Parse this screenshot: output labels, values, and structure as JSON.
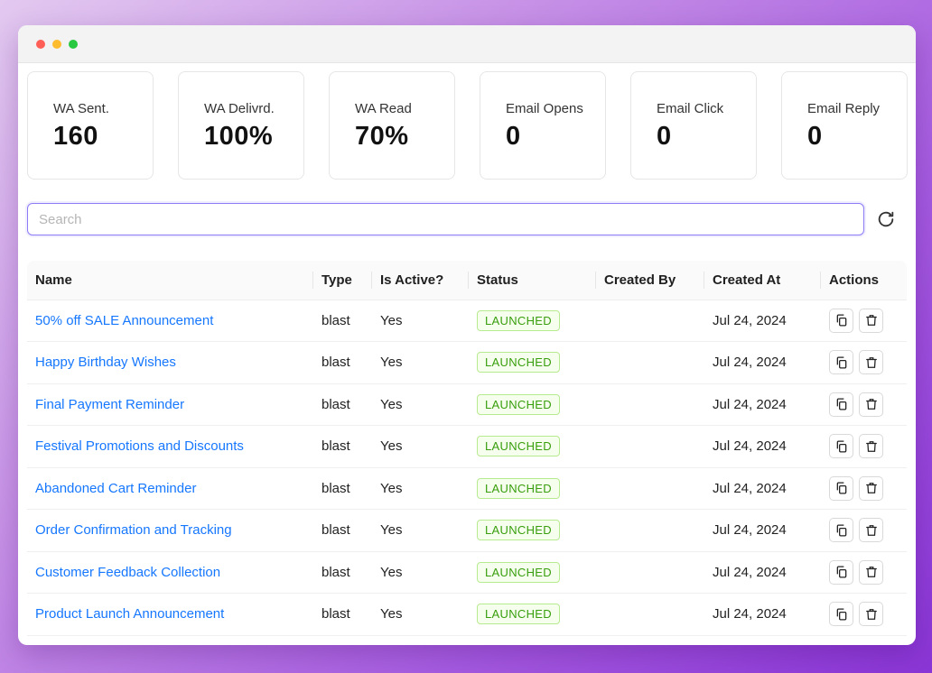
{
  "stats": [
    {
      "label": "WA Sent.",
      "value": "160"
    },
    {
      "label": "WA Delivrd.",
      "value": "100%"
    },
    {
      "label": "WA Read",
      "value": "70%"
    },
    {
      "label": "Email Opens",
      "value": "0"
    },
    {
      "label": "Email Click",
      "value": "0"
    },
    {
      "label": "Email Reply",
      "value": "0"
    }
  ],
  "search": {
    "placeholder": "Search",
    "value": ""
  },
  "icons": {
    "refresh": "refresh-icon",
    "copy": "copy-icon",
    "delete": "trash-icon"
  },
  "colors": {
    "accent": "#8b7cf6",
    "link": "#1677ff",
    "launched_text": "#389e0d",
    "launched_bg": "#f6ffed",
    "launched_border": "#b7eb8f"
  },
  "table": {
    "headers": [
      "Name",
      "Type",
      "Is Active?",
      "Status",
      "Created By",
      "Created At",
      "Actions"
    ],
    "rows": [
      {
        "name": "50% off SALE Announcement",
        "type": "blast",
        "active": "Yes",
        "status": "LAUNCHED",
        "created_by": "",
        "created_at": "Jul 24, 2024"
      },
      {
        "name": "Happy Birthday Wishes",
        "type": "blast",
        "active": "Yes",
        "status": "LAUNCHED",
        "created_by": "",
        "created_at": "Jul 24, 2024"
      },
      {
        "name": "Final Payment Reminder",
        "type": "blast",
        "active": "Yes",
        "status": "LAUNCHED",
        "created_by": "",
        "created_at": "Jul 24, 2024"
      },
      {
        "name": "Festival Promotions and Discounts",
        "type": "blast",
        "active": "Yes",
        "status": "LAUNCHED",
        "created_by": "",
        "created_at": "Jul 24, 2024"
      },
      {
        "name": "Abandoned Cart Reminder",
        "type": "blast",
        "active": "Yes",
        "status": "LAUNCHED",
        "created_by": "",
        "created_at": "Jul 24, 2024"
      },
      {
        "name": "Order Confirmation and Tracking",
        "type": "blast",
        "active": "Yes",
        "status": "LAUNCHED",
        "created_by": "",
        "created_at": "Jul 24, 2024"
      },
      {
        "name": "Customer Feedback Collection",
        "type": "blast",
        "active": "Yes",
        "status": "LAUNCHED",
        "created_by": "",
        "created_at": "Jul 24, 2024"
      },
      {
        "name": "Product Launch Announcement",
        "type": "blast",
        "active": "Yes",
        "status": "LAUNCHED",
        "created_by": "",
        "created_at": "Jul 24, 2024"
      }
    ]
  }
}
